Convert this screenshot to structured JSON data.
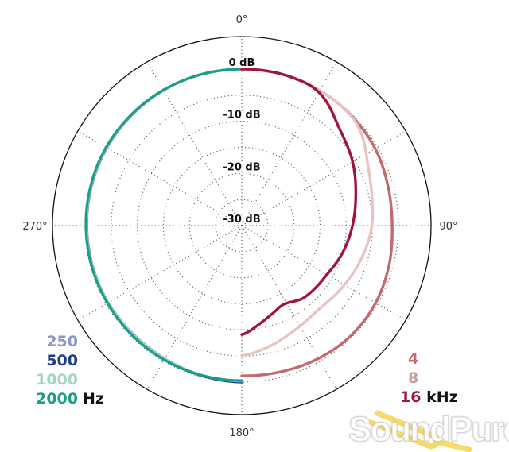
{
  "chart_data": {
    "type": "polar-line",
    "title": "",
    "radial_unit": "dB",
    "r_range": [
      -30,
      6
    ],
    "ring_ticks": [
      0,
      -5,
      -10,
      -15,
      -20,
      -25
    ],
    "ring_labels": [
      {
        "value": 0,
        "text": "0 dB"
      },
      {
        "value": -10,
        "text": "-10 dB"
      },
      {
        "value": -20,
        "text": "-20 dB"
      },
      {
        "value": -30,
        "text": "-30 dB"
      }
    ],
    "angle_labels": [
      {
        "angle": 0,
        "text": "0°"
      },
      {
        "angle": 90,
        "text": "90°"
      },
      {
        "angle": 180,
        "text": "180°"
      },
      {
        "angle": 270,
        "text": "270°"
      }
    ],
    "radial_grid_step_deg": 30,
    "grid": true,
    "series": [
      {
        "name": "250",
        "color": "#8c97c9",
        "angles": [
          180,
          200,
          220,
          240,
          260,
          280,
          300,
          320,
          340,
          360
        ],
        "values": [
          0,
          -0.4,
          -0.6,
          -0.5,
          -0.4,
          -0.3,
          -0.2,
          -0.1,
          0,
          0
        ]
      },
      {
        "name": "500",
        "color": "#1f3b8a",
        "angles": [
          180,
          200,
          220,
          240,
          260,
          280,
          300,
          320,
          340,
          360
        ],
        "values": [
          0,
          -0.3,
          -0.4,
          -0.4,
          -0.3,
          -0.2,
          -0.1,
          0,
          0,
          0
        ]
      },
      {
        "name": "1000",
        "color": "#a3d4c4",
        "angles": [
          180,
          200,
          220,
          240,
          260,
          280,
          300,
          320,
          340,
          360
        ],
        "values": [
          -0.2,
          -0.4,
          -0.5,
          -0.5,
          -0.3,
          -0.2,
          -0.1,
          0,
          0,
          0
        ]
      },
      {
        "name": "2000",
        "color": "#1b9e88",
        "angles": [
          180,
          200,
          220,
          240,
          260,
          280,
          300,
          320,
          340,
          360
        ],
        "values": [
          -0.3,
          -0.3,
          -0.3,
          -0.3,
          -0.2,
          -0.1,
          0,
          0,
          0,
          0
        ]
      },
      {
        "name": "4",
        "color": "#c2696e",
        "angles": [
          0,
          20,
          40,
          60,
          75,
          90,
          105,
          120,
          135,
          150,
          165,
          180
        ],
        "values": [
          0,
          0,
          -0.2,
          -0.5,
          -1,
          -1.2,
          -0.8,
          -0.4,
          -0.3,
          -0.6,
          -1,
          -1.2
        ]
      },
      {
        "name": "8",
        "color": "#e8c3c3",
        "angles": [
          0,
          20,
          40,
          50,
          65,
          80,
          90,
          105,
          120,
          138,
          155,
          170,
          180
        ],
        "values": [
          0,
          0,
          -0.2,
          -0.8,
          -3.3,
          -4.6,
          -5.1,
          -6.2,
          -7.3,
          -8.2,
          -7.4,
          -6,
          -5.1
        ]
      },
      {
        "name": "16",
        "color": "#a0163a",
        "angles": [
          0,
          18,
          30,
          45,
          60,
          75,
          90,
          105,
          120,
          140,
          152,
          162,
          170,
          180
        ],
        "values": [
          0,
          0,
          -0.5,
          -3.6,
          -5.5,
          -7.4,
          -8.8,
          -10,
          -11.2,
          -11.8,
          -12.9,
          -12,
          -10.8,
          -9.1
        ]
      }
    ],
    "legend_left": {
      "items": [
        "250",
        "500",
        "1000",
        "2000"
      ],
      "unit": "Hz"
    },
    "legend_right": {
      "items": [
        "4",
        "8",
        "16"
      ],
      "unit": "kHz"
    }
  },
  "watermark": "SoundPure"
}
